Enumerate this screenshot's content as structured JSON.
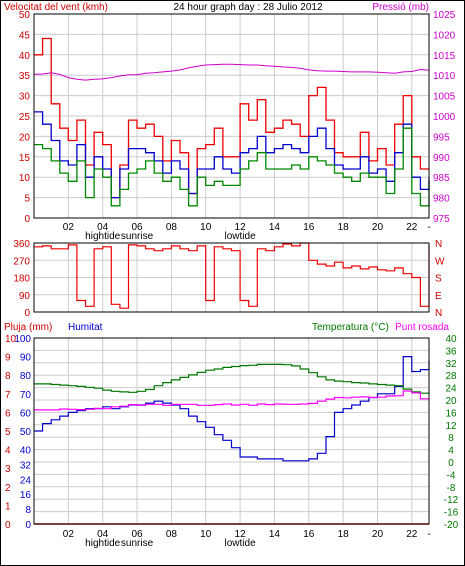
{
  "colors": {
    "wind": "#ee0000",
    "gust": "#0000cc",
    "windDir": "#ee0000",
    "pressure": "#cc00cc",
    "rain": "#ee0000",
    "humidity": "#0000cc",
    "temperature": "#007700",
    "dewpoint": "#ff00ff",
    "mean": "#008800",
    "grid": "#cccccc",
    "frame": "#000000"
  },
  "chart_data": [
    {
      "type": "line",
      "title": "24 hour graph day : 28 Julio 2012",
      "left_axis_label": "Velocitat del vent (kmh)",
      "right_axis_label": "Pressió (mb)",
      "left_ylim": [
        0,
        50
      ],
      "left_ticks": [
        "0",
        "5",
        "10",
        "15",
        "20",
        "25",
        "30",
        "35",
        "40",
        "45",
        "50"
      ],
      "right_ylim": [
        975,
        1025
      ],
      "right_ticks": [
        "975",
        "980",
        "985",
        "990",
        "995",
        "1000",
        "1005",
        "1010",
        "1015",
        "1020",
        "1025"
      ],
      "x_ticks": [
        "02",
        "04",
        "06",
        "08",
        "10",
        "12",
        "14",
        "16",
        "18",
        "20",
        "22",
        "-"
      ],
      "events": [
        {
          "label": "hightide",
          "pos": 4
        },
        {
          "label": "sunrise",
          "pos": 6
        },
        {
          "label": "lowtide",
          "pos": 12
        }
      ],
      "x": [
        0,
        0.5,
        1,
        1.5,
        2,
        2.5,
        3,
        3.5,
        4,
        4.5,
        5,
        5.5,
        6,
        6.5,
        7,
        7.5,
        8,
        8.5,
        9,
        9.5,
        10,
        10.5,
        11,
        11.5,
        12,
        12.5,
        13,
        13.5,
        14,
        14.5,
        15,
        15.5,
        16,
        16.5,
        17,
        17.5,
        18,
        18.5,
        19,
        19.5,
        20,
        20.5,
        21,
        21.5,
        22,
        22.5,
        23
      ],
      "series": [
        {
          "name": "gust",
          "values": [
            40,
            44,
            28,
            22,
            19,
            24,
            13,
            21,
            18,
            5,
            13,
            24,
            22,
            23,
            20,
            14,
            19,
            16,
            6,
            17,
            18,
            22,
            15,
            15,
            28,
            24,
            29,
            21,
            22,
            24,
            23,
            20,
            30,
            32,
            24,
            16,
            15,
            15,
            21,
            14,
            17,
            13,
            23,
            30,
            15,
            12,
            12
          ]
        },
        {
          "name": "wind",
          "values": [
            26,
            23,
            19,
            14,
            13,
            18,
            10,
            15,
            12,
            5,
            12,
            17,
            17,
            16,
            14,
            11,
            14,
            12,
            6,
            12,
            12,
            15,
            12,
            11,
            16,
            17,
            20,
            16,
            17,
            18,
            17,
            16,
            20,
            22,
            17,
            13,
            12,
            12,
            15,
            11,
            12,
            9,
            16,
            23,
            10,
            7,
            10
          ]
        },
        {
          "name": "mean",
          "values": [
            18,
            17,
            14,
            11,
            9,
            14,
            5,
            12,
            10,
            3,
            7,
            11,
            12,
            14,
            11,
            9,
            10,
            7,
            3,
            10,
            8,
            9,
            8,
            8,
            12,
            14,
            16,
            12,
            12,
            12,
            13,
            12,
            15,
            14,
            13,
            11,
            10,
            9,
            11,
            10,
            10,
            6,
            12,
            22,
            6,
            3,
            9
          ]
        },
        {
          "name": "pressure",
          "values": [
            1010.2,
            1010.3,
            1010.6,
            1010.2,
            1009.4,
            1009,
            1008.8,
            1009,
            1009.1,
            1009.4,
            1009.8,
            1010.1,
            1010.1,
            1010.5,
            1010.6,
            1010.8,
            1011,
            1011.3,
            1011.8,
            1012.2,
            1012.5,
            1012.6,
            1012.7,
            1012.7,
            1012.6,
            1012.5,
            1012.5,
            1012.3,
            1012.2,
            1012,
            1011.9,
            1011.7,
            1011.3,
            1011.1,
            1011,
            1011,
            1010.9,
            1010.8,
            1010.8,
            1010.8,
            1010.7,
            1010.6,
            1010.5,
            1010.8,
            1010.9,
            1011.4,
            1011.2
          ]
        }
      ]
    },
    {
      "type": "line",
      "right_labels": [
        "N",
        "W",
        "S",
        "E",
        "N"
      ],
      "ylim": [
        0,
        360
      ],
      "ticks": [
        "0",
        "90",
        "180",
        "270",
        "360"
      ],
      "series": [
        {
          "name": "wind direction",
          "values": [
            340,
            345,
            330,
            330,
            350,
            60,
            30,
            330,
            340,
            40,
            20,
            350,
            345,
            330,
            320,
            330,
            345,
            330,
            320,
            345,
            60,
            340,
            330,
            320,
            60,
            30,
            330,
            320,
            340,
            355,
            345,
            360,
            270,
            250,
            240,
            260,
            230,
            240,
            225,
            235,
            220,
            215,
            230,
            200,
            180,
            30,
            350
          ]
        }
      ]
    },
    {
      "type": "line",
      "left_axis_label": "Pluja (mm)",
      "humidity_label": "Humitat",
      "right_axis_label": "Temperatura (°C)",
      "dewpoint_label": "Punt rosada",
      "rain_ticks": [
        "0",
        "1",
        "2",
        "3",
        "4",
        "5",
        "6",
        "7",
        "8",
        "9",
        "10"
      ],
      "humidity_ticks": [
        "0",
        "8",
        "16",
        "24",
        "32",
        "40",
        "50",
        "60",
        "70",
        "80",
        "90",
        "100"
      ],
      "right_ticks": [
        "-20",
        "-16",
        "-12",
        "-8",
        "-4",
        "0",
        "4",
        "8",
        "12",
        "16",
        "20",
        "24",
        "28",
        "32",
        "36",
        "40"
      ],
      "right_ylim": [
        -20,
        40
      ],
      "x_ticks": [
        "02",
        "04",
        "06",
        "08",
        "10",
        "12",
        "14",
        "16",
        "18",
        "20",
        "22",
        "-"
      ],
      "events": [
        {
          "label": "hightide",
          "pos": 4
        },
        {
          "label": "sunrise",
          "pos": 6
        },
        {
          "label": "lowtide",
          "pos": 12
        }
      ],
      "x": [
        0,
        0.5,
        1,
        1.5,
        2,
        2.5,
        3,
        3.5,
        4,
        4.5,
        5,
        5.5,
        6,
        6.5,
        7,
        7.5,
        8,
        8.5,
        9,
        9.5,
        10,
        10.5,
        11,
        11.5,
        12,
        12.5,
        13,
        13.5,
        14,
        14.5,
        15,
        15.5,
        16,
        16.5,
        17,
        17.5,
        18,
        18.5,
        19,
        19.5,
        20,
        20.5,
        21,
        21.5,
        22,
        22.5,
        23
      ],
      "series": [
        {
          "name": "rain",
          "values": [
            0,
            0,
            0,
            0,
            0,
            0,
            0,
            0,
            0,
            0,
            0,
            0,
            0,
            0,
            0,
            0,
            0,
            0,
            0,
            0,
            0,
            0,
            0,
            0,
            0,
            0,
            0,
            0,
            0,
            0,
            0,
            0,
            0,
            0,
            0,
            0,
            0,
            0,
            0,
            0,
            0,
            0,
            0,
            0,
            0,
            0,
            0
          ]
        },
        {
          "name": "humidity",
          "values": [
            50,
            54,
            56,
            58,
            60,
            61,
            62,
            62,
            63,
            62,
            63,
            64,
            64,
            65,
            66,
            65,
            64,
            62,
            58,
            55,
            52,
            48,
            45,
            41,
            36,
            36,
            35,
            35,
            35,
            34,
            34,
            34,
            35,
            38,
            47,
            60,
            62,
            64,
            66,
            68,
            70,
            70,
            74,
            90,
            82,
            83,
            88
          ]
        },
        {
          "name": "temperature",
          "values": [
            25.2,
            25.2,
            25,
            24.8,
            24.6,
            24.4,
            24.1,
            23.8,
            23.2,
            22.8,
            22.6,
            22.5,
            22.8,
            23.4,
            24.6,
            25.6,
            26.5,
            27.3,
            28.1,
            28.9,
            29.6,
            30,
            30.5,
            30.8,
            31.1,
            31.2,
            31.5,
            31.5,
            31.5,
            31.4,
            31,
            30,
            28.8,
            27.5,
            26.5,
            26.1,
            25.9,
            25.6,
            25.5,
            25.2,
            25,
            24.8,
            24.6,
            23.5,
            22.6,
            22.2,
            22
          ]
        },
        {
          "name": "dewpoint",
          "values": [
            16.8,
            16.8,
            16.8,
            17.1,
            17,
            16.9,
            17,
            17.3,
            17.2,
            17.8,
            18,
            18.5,
            18.3,
            18.6,
            18.6,
            18.3,
            18.6,
            18.6,
            18.6,
            18.3,
            18.3,
            18.5,
            18.7,
            18.4,
            18.6,
            18.3,
            18.7,
            18.5,
            18.7,
            18.6,
            18.6,
            18.7,
            18.9,
            19.6,
            20.3,
            20.8,
            20.7,
            20.9,
            21,
            20.8,
            20.9,
            21.3,
            21.4,
            22.9,
            22.3,
            20.4,
            20.4
          ]
        }
      ]
    }
  ]
}
